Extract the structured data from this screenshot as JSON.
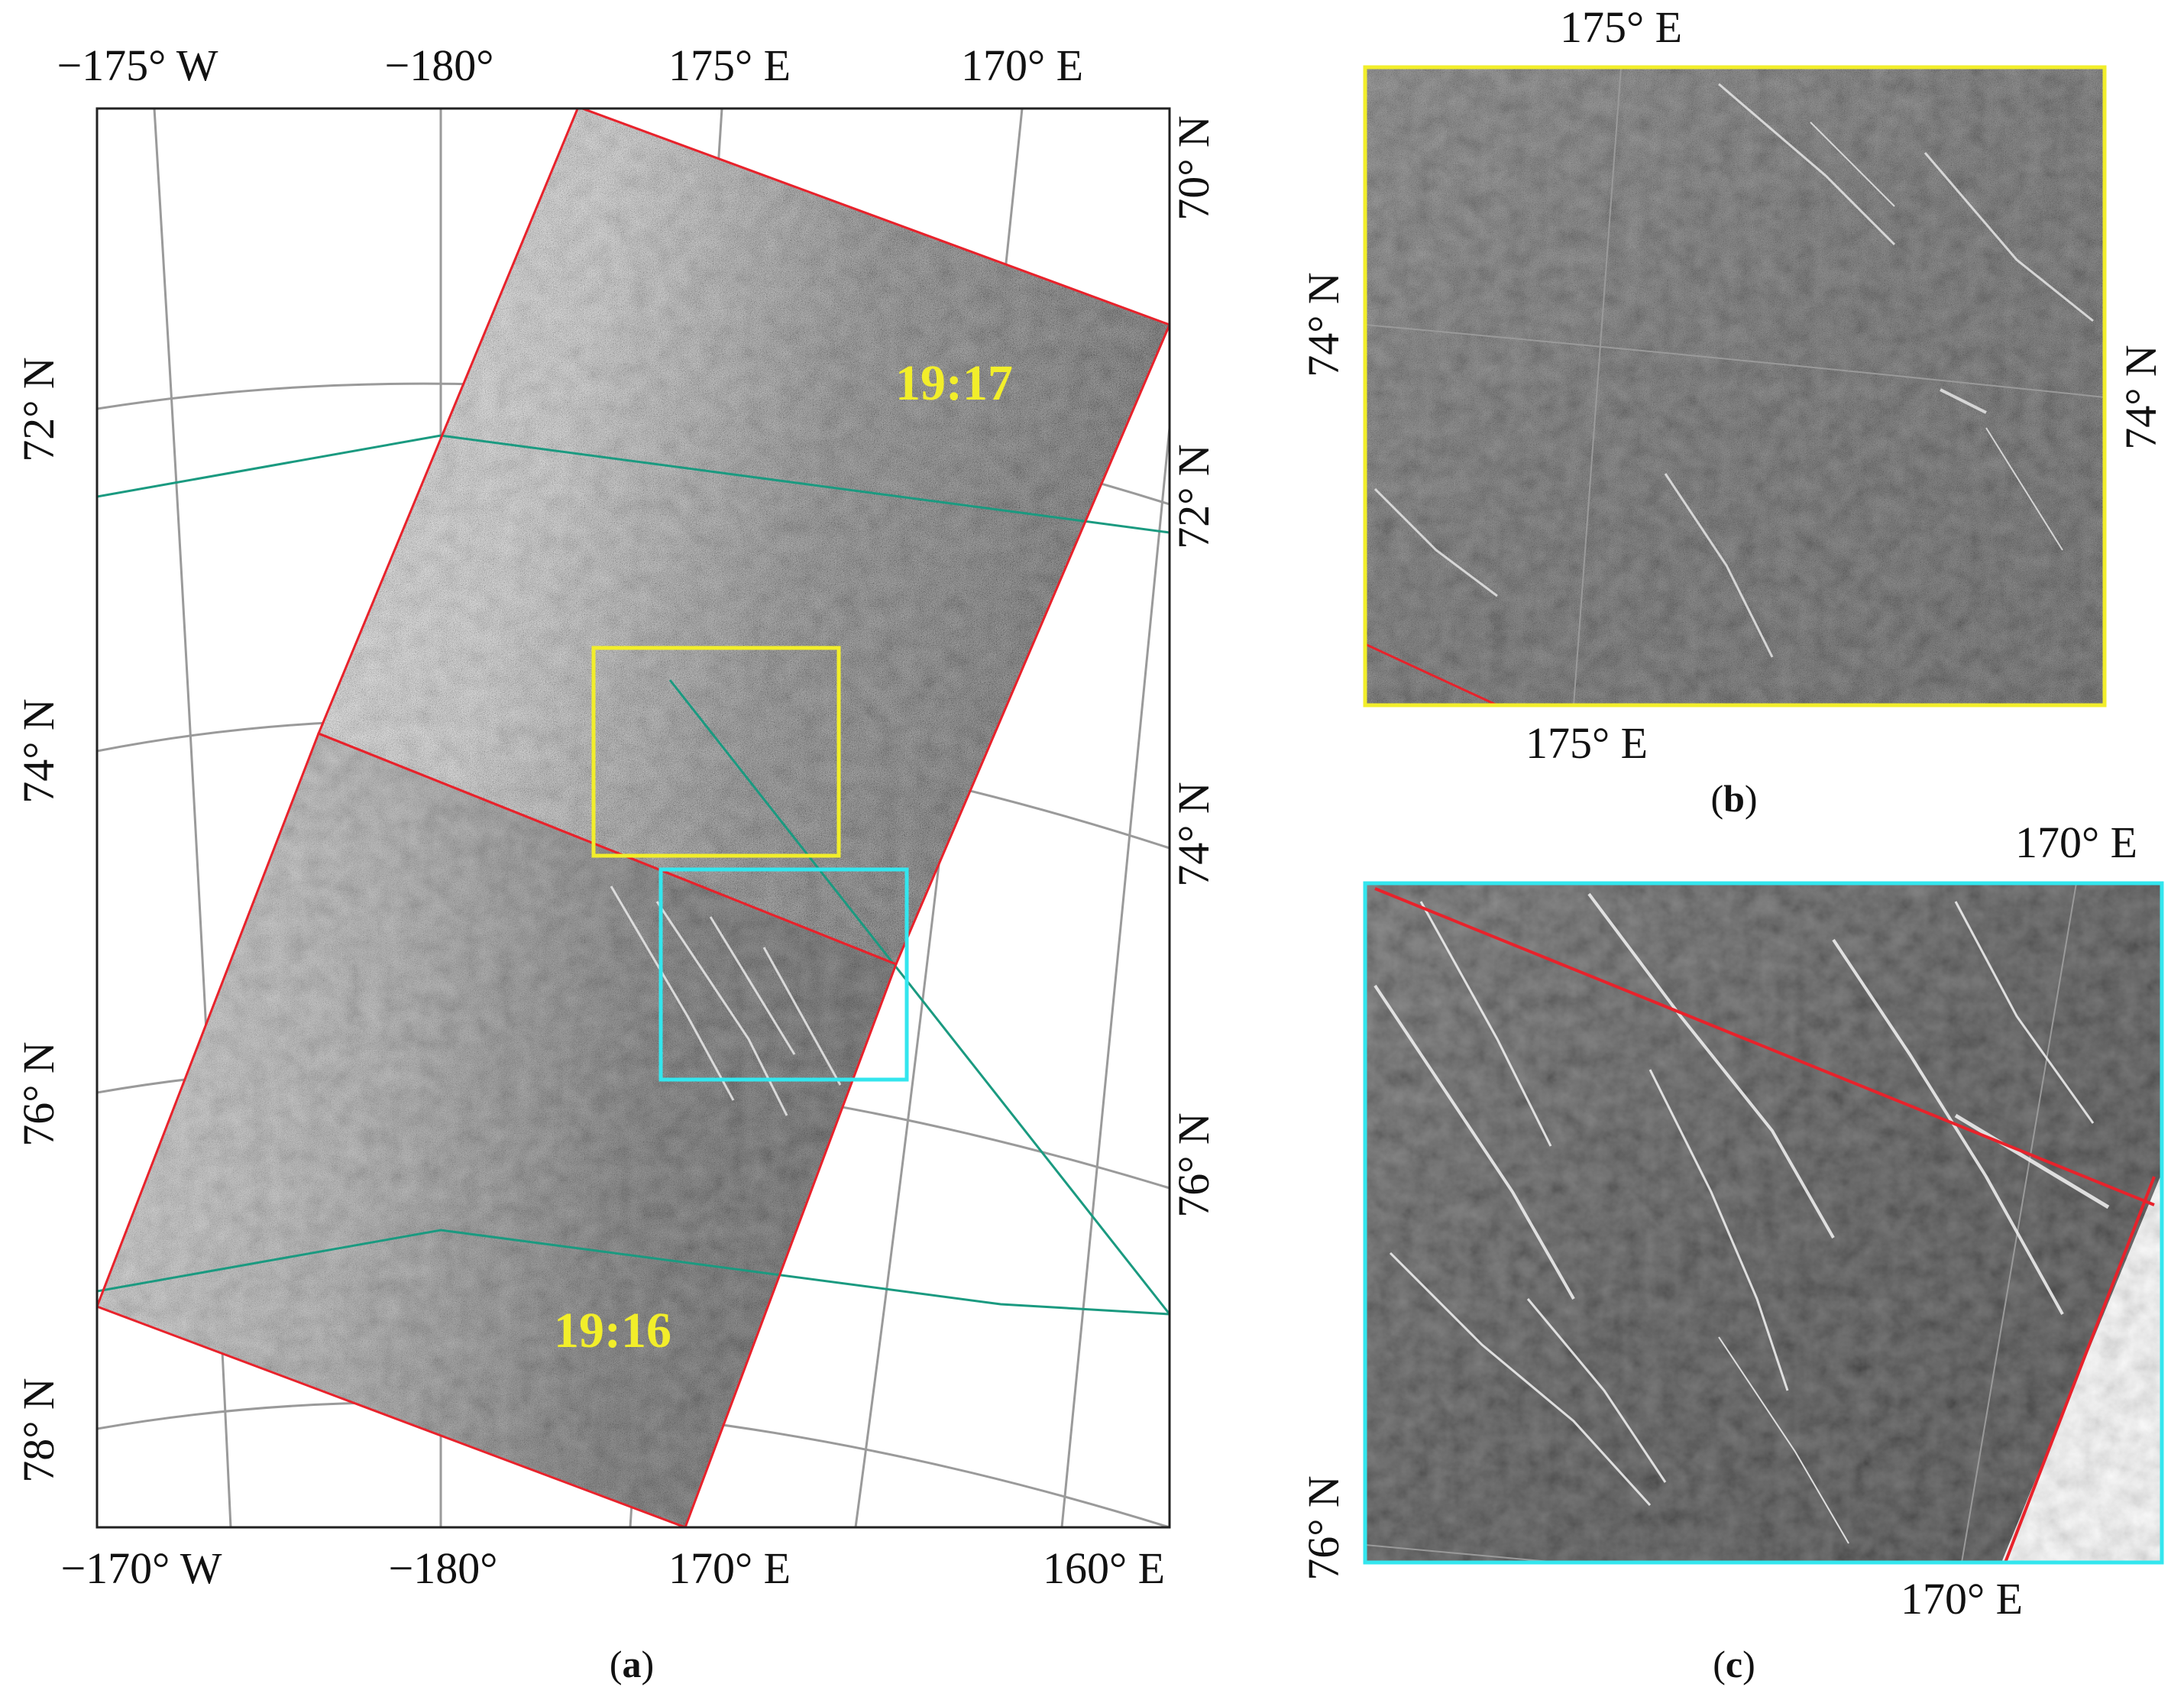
{
  "colors": {
    "swath_outline": "#e8222b",
    "coverage_outline": "#1a9a80",
    "box_b": "#f2ee2a",
    "box_c": "#33e6ee",
    "timestamp": "#f2ee2a",
    "graticule": "#9a9a9a"
  },
  "panel_a": {
    "caption": {
      "open": "(",
      "letter": "a",
      "close": ")"
    },
    "top_lon_labels": [
      "−175° W",
      "−180°",
      "175° E",
      "170° E"
    ],
    "bottom_lon_labels": [
      "−170° W",
      "−180°",
      "170° E",
      "160° E"
    ],
    "left_lat_labels": [
      "72° N",
      "74° N",
      "76° N",
      "78° N"
    ],
    "right_lat_labels": [
      "70° N",
      "72° N",
      "74° N",
      "76° N"
    ],
    "timestamps": [
      "19:17",
      "19:16"
    ],
    "inset_boxes": [
      "b",
      "c"
    ]
  },
  "panel_b": {
    "caption": {
      "open": "(",
      "letter": "b",
      "close": ")"
    },
    "top_lon_label": "175° E",
    "bottom_lon_label": "175° E",
    "left_lat_label": "74° N",
    "right_lat_label": "74° N"
  },
  "panel_c": {
    "caption": {
      "open": "(",
      "letter": "c",
      "close": ")"
    },
    "top_lon_label": "170° E",
    "bottom_lon_label": "170° E",
    "left_lat_label": "76° N"
  }
}
